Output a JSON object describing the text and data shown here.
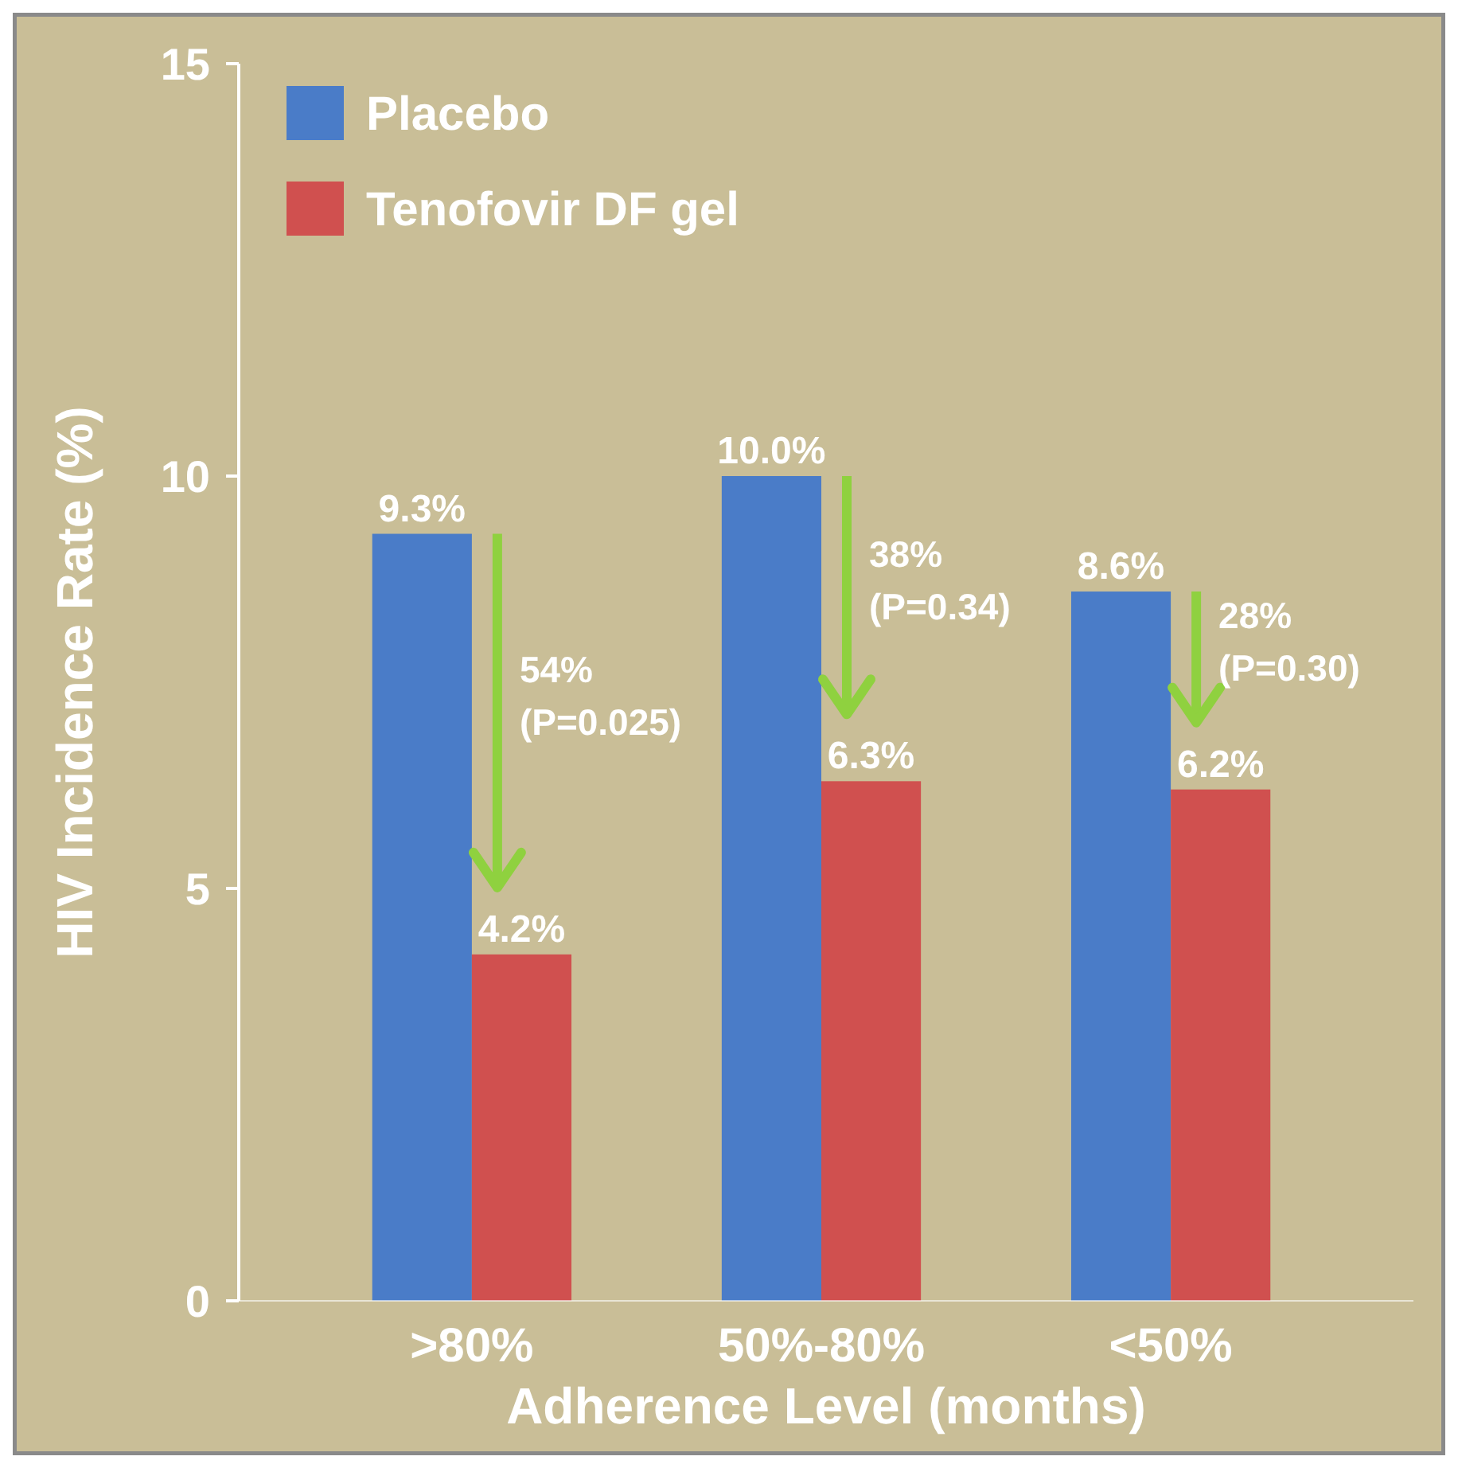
{
  "chart_data": {
    "type": "bar",
    "xlabel": "Adherence Level (months)",
    "ylabel": "HIV Incidence Rate (%)",
    "categories": [
      ">80%",
      "50%-80%",
      "<50%"
    ],
    "series": [
      {
        "name": "Placebo",
        "color": "#4a7cc8",
        "values": [
          9.3,
          10.0,
          8.6
        ],
        "value_labels": [
          "9.3%",
          "10.0%",
          "8.6%"
        ]
      },
      {
        "name": "Tenofovir DF gel",
        "color": "#d0504f",
        "values": [
          4.2,
          6.3,
          6.2
        ],
        "value_labels": [
          "4.2%",
          "6.3%",
          "6.2%"
        ]
      }
    ],
    "ylim": [
      0,
      15
    ],
    "yticks": [
      0,
      5,
      10,
      15
    ],
    "grid": false,
    "legend": "top left",
    "annotations": [
      "54% (P=0.025)",
      "38% (P=0.34)",
      "28% (P=0.30)"
    ]
  }
}
